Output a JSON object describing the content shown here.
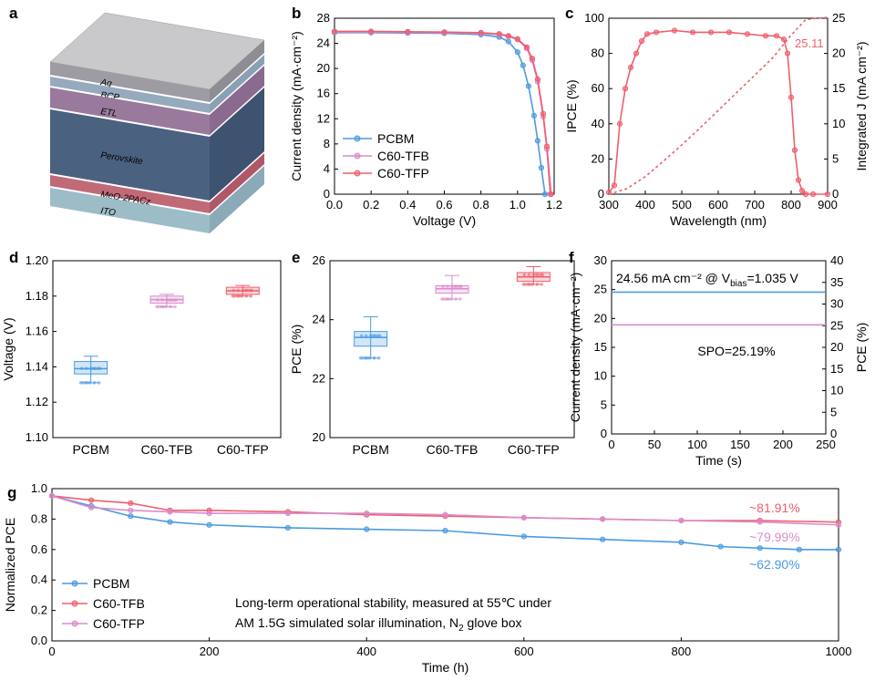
{
  "colors": {
    "pcbm": "#4a9be0",
    "tfb": "#d88ccc",
    "tfp": "#ee5f6c",
    "text": "#000000"
  },
  "panels": {
    "a": "a",
    "b": "b",
    "c": "c",
    "d": "d",
    "e": "e",
    "f": "f",
    "g": "g"
  },
  "device_stack": [
    "Ag",
    "BCP",
    "ETL",
    "Perovskite",
    "MeO-2PACz",
    "ITO"
  ],
  "chart_data": [
    {
      "panel": "b",
      "type": "line",
      "xlabel": "Voltage (V)",
      "ylabel": "Current density (mA·cm⁻²)",
      "xlim": [
        0,
        1.2
      ],
      "ylim": [
        0,
        28
      ],
      "xticks": [
        "0.0",
        "0.2",
        "0.4",
        "0.6",
        "0.8",
        "1.0",
        "1.2"
      ],
      "yticks": [
        "0",
        "4",
        "8",
        "12",
        "16",
        "20",
        "24",
        "28"
      ],
      "legend": [
        "PCBM",
        "C60-TFB",
        "C60-TFP"
      ],
      "series": [
        {
          "name": "PCBM",
          "x": [
            0,
            0.2,
            0.4,
            0.6,
            0.8,
            0.9,
            0.95,
            1.0,
            1.03,
            1.06,
            1.09,
            1.11,
            1.13,
            1.15
          ],
          "y": [
            25.7,
            25.7,
            25.65,
            25.6,
            25.4,
            25.0,
            24.3,
            22.6,
            20.5,
            17.2,
            12.5,
            8.5,
            4.2,
            0
          ]
        },
        {
          "name": "C60-TFB",
          "x": [
            0,
            0.2,
            0.4,
            0.6,
            0.8,
            0.9,
            0.95,
            1.0,
            1.05,
            1.08,
            1.11,
            1.14,
            1.16,
            1.178
          ],
          "y": [
            25.8,
            25.8,
            25.75,
            25.7,
            25.6,
            25.4,
            25.1,
            24.6,
            23.2,
            21.3,
            17.9,
            12.3,
            7.2,
            0
          ]
        },
        {
          "name": "C60-TFP",
          "x": [
            0,
            0.2,
            0.4,
            0.6,
            0.8,
            0.9,
            0.95,
            1.0,
            1.05,
            1.08,
            1.11,
            1.14,
            1.16,
            1.183
          ],
          "y": [
            25.9,
            25.9,
            25.85,
            25.8,
            25.7,
            25.5,
            25.2,
            24.7,
            23.4,
            21.6,
            18.3,
            12.8,
            7.6,
            0
          ]
        }
      ]
    },
    {
      "panel": "c",
      "type": "line",
      "xlabel": "Wavelength (nm)",
      "ylabel": "IPCE (%)",
      "y2label": "Integrated J (mA cm⁻²)",
      "xlim": [
        300,
        900
      ],
      "ylim": [
        0,
        100
      ],
      "y2lim": [
        0,
        25
      ],
      "xticks": [
        "300",
        "400",
        "500",
        "600",
        "700",
        "800",
        "900"
      ],
      "yticks": [
        "0",
        "20",
        "40",
        "60",
        "80",
        "100"
      ],
      "y2ticks": [
        "0",
        "5",
        "10",
        "15",
        "20",
        "25"
      ],
      "annotation": "25.11",
      "series": [
        {
          "name": "IPCE",
          "x": [
            300,
            315,
            330,
            345,
            360,
            375,
            390,
            405,
            430,
            480,
            530,
            580,
            630,
            680,
            730,
            760,
            780,
            790,
            800,
            810,
            820,
            830,
            840,
            860,
            900
          ],
          "y": [
            1,
            5,
            40,
            60,
            72,
            80,
            87,
            91,
            92,
            93,
            92,
            92,
            92,
            91,
            90,
            90,
            88,
            80,
            55,
            25,
            8,
            2,
            0,
            0,
            0
          ]
        },
        {
          "name": "Integrated J",
          "x": [
            300,
            350,
            400,
            450,
            500,
            550,
            600,
            650,
            700,
            750,
            800,
            840,
            880,
            900
          ],
          "y": [
            0,
            0.8,
            2.5,
            4.7,
            7.0,
            9.4,
            11.9,
            14.4,
            16.9,
            19.4,
            22.6,
            24.8,
            25.05,
            25.11
          ]
        }
      ]
    },
    {
      "panel": "d",
      "type": "box",
      "ylabel": "Voltage (V)",
      "ylim": [
        1.1,
        1.2
      ],
      "yticks": [
        "1.10",
        "1.12",
        "1.14",
        "1.16",
        "1.18",
        "1.20"
      ],
      "categories": [
        "PCBM",
        "C60-TFB",
        "C60-TFP"
      ],
      "boxes": [
        {
          "min": 1.131,
          "q1": 1.136,
          "median": 1.139,
          "q3": 1.143,
          "max": 1.146
        },
        {
          "min": 1.174,
          "q1": 1.176,
          "median": 1.178,
          "q3": 1.18,
          "max": 1.181
        },
        {
          "min": 1.18,
          "q1": 1.181,
          "median": 1.183,
          "q3": 1.185,
          "max": 1.186
        }
      ]
    },
    {
      "panel": "e",
      "type": "box",
      "ylabel": "PCE (%)",
      "ylim": [
        20,
        26
      ],
      "yticks": [
        "20",
        "22",
        "24",
        "26"
      ],
      "categories": [
        "PCBM",
        "C60-TFB",
        "C60-TFP"
      ],
      "boxes": [
        {
          "min": 22.7,
          "q1": 23.1,
          "median": 23.4,
          "q3": 23.6,
          "max": 24.1
        },
        {
          "min": 24.7,
          "q1": 24.9,
          "median": 25.05,
          "q3": 25.15,
          "max": 25.5
        },
        {
          "min": 25.2,
          "q1": 25.3,
          "median": 25.45,
          "q3": 25.6,
          "max": 25.8
        }
      ]
    },
    {
      "panel": "f",
      "type": "line",
      "xlabel": "Time (s)",
      "ylabel": "Current density (mA·cm⁻²)",
      "y2label": "PCE (%)",
      "xlim": [
        0,
        250
      ],
      "ylim": [
        0,
        30
      ],
      "y2lim": [
        0,
        40
      ],
      "xticks": [
        "0",
        "50",
        "100",
        "150",
        "200",
        "250"
      ],
      "yticks": [
        "0",
        "5",
        "10",
        "15",
        "20",
        "25",
        "30"
      ],
      "y2ticks": [
        "0",
        "5",
        "10",
        "15",
        "20",
        "25",
        "30",
        "35",
        "40"
      ],
      "annotation": "24.56 mA cm⁻² @ V",
      "annotation_sub": "bias",
      "annotation_tail": "=1.035 V",
      "spo": "SPO=25.19%",
      "series": [
        {
          "name": "Current density",
          "x": [
            0,
            250
          ],
          "y": [
            24.56,
            24.56
          ]
        },
        {
          "name": "PCE",
          "x": [
            0,
            250
          ],
          "y": [
            25.19,
            25.19
          ]
        }
      ]
    },
    {
      "panel": "g",
      "type": "line",
      "xlabel": "Time (h)",
      "ylabel": "Normalized PCE",
      "xlim": [
        0,
        1000
      ],
      "ylim": [
        0,
        1.05
      ],
      "xticks": [
        "0",
        "200",
        "400",
        "600",
        "800",
        "1000"
      ],
      "yticks": [
        "0.0",
        "0.2",
        "0.4",
        "0.6",
        "0.8",
        "1.0"
      ],
      "legend": [
        "PCBM",
        "C60-TFB",
        "C60-TFP"
      ],
      "note_line1": "Long-term operational stability, measured at 55℃ under",
      "note_line2": "AM 1.5G simulated solar illumination, N",
      "note_sub": "2",
      "note_tail": " glove box",
      "end_labels": [
        "~81.91%",
        "~79.99%",
        "~62.90%"
      ],
      "series": [
        {
          "name": "PCBM",
          "x": [
            0,
            50,
            100,
            150,
            200,
            300,
            400,
            500,
            600,
            700,
            800,
            850,
            900,
            950,
            1000
          ],
          "y": [
            1.0,
            0.93,
            0.86,
            0.82,
            0.8,
            0.78,
            0.77,
            0.76,
            0.72,
            0.7,
            0.68,
            0.65,
            0.64,
            0.63,
            0.629
          ]
        },
        {
          "name": "C60-TFB",
          "x": [
            0,
            50,
            100,
            150,
            200,
            300,
            400,
            500,
            600,
            700,
            800,
            900,
            1000
          ],
          "y": [
            1.0,
            0.97,
            0.95,
            0.9,
            0.9,
            0.89,
            0.87,
            0.86,
            0.85,
            0.84,
            0.83,
            0.83,
            0.819
          ]
        },
        {
          "name": "C60-TFP",
          "x": [
            0,
            50,
            100,
            150,
            200,
            300,
            400,
            500,
            600,
            700,
            800,
            900,
            1000
          ],
          "y": [
            1.0,
            0.92,
            0.9,
            0.89,
            0.88,
            0.88,
            0.88,
            0.87,
            0.85,
            0.84,
            0.83,
            0.82,
            0.8
          ]
        }
      ]
    }
  ]
}
